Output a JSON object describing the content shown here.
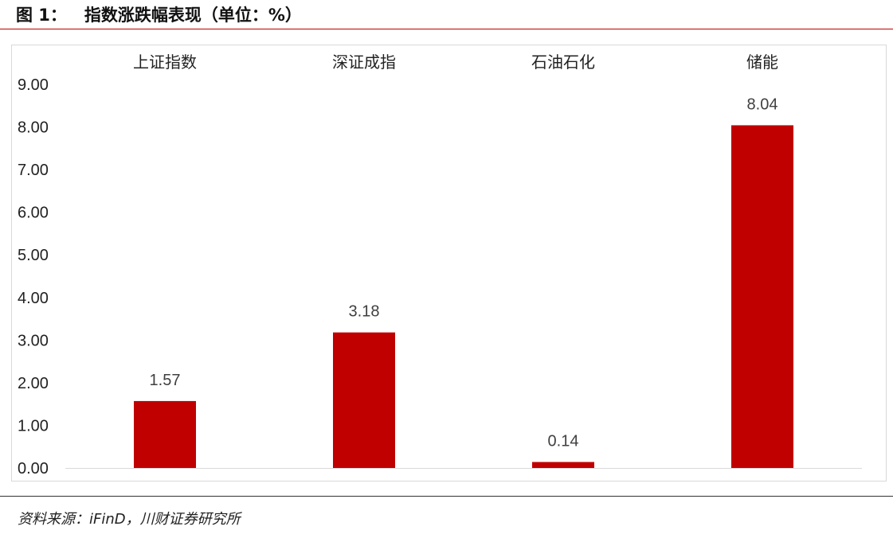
{
  "figure": {
    "title": "图 1：   指数涨跌幅表现（单位：%）",
    "source": "资料来源：iFinD，川财证券研究所"
  },
  "colors": {
    "bar": "#c00000",
    "accent_rule": "#c00000"
  },
  "chart_data": {
    "type": "bar",
    "title": "",
    "xlabel": "",
    "ylabel": "",
    "categories": [
      "上证指数",
      "深证成指",
      "石油石化",
      "储能"
    ],
    "values": [
      1.57,
      3.18,
      0.14,
      8.04
    ],
    "data_labels": [
      "1.57",
      "3.18",
      "0.14",
      "8.04"
    ],
    "ylim": [
      0,
      9
    ],
    "yticks": [
      "0.00",
      "1.00",
      "2.00",
      "3.00",
      "4.00",
      "5.00",
      "6.00",
      "7.00",
      "8.00",
      "9.00"
    ],
    "category_axis_position": "top",
    "grid": false,
    "legend": "none"
  }
}
